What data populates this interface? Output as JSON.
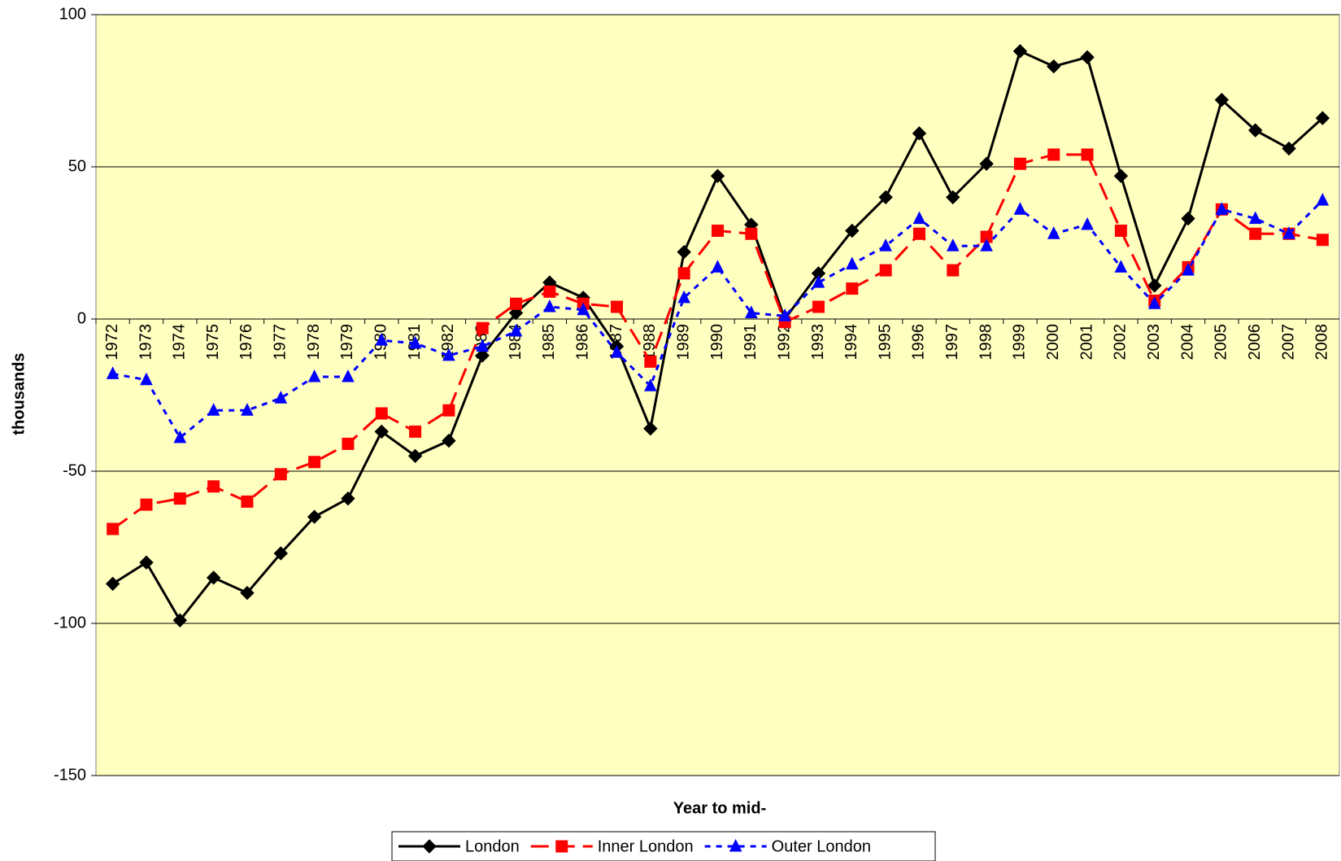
{
  "chart_data": {
    "type": "line",
    "x_label": "Year to mid-",
    "y_label": "thousands",
    "categories": [
      "1972",
      "1973",
      "1974",
      "1975",
      "1976",
      "1977",
      "1978",
      "1979",
      "1980",
      "1981",
      "1982",
      "1983",
      "1984",
      "1985",
      "1986",
      "1987",
      "1988",
      "1989",
      "1990",
      "1991",
      "1992",
      "1993",
      "1994",
      "1995",
      "1996",
      "1997",
      "1998",
      "1999",
      "2000",
      "2001",
      "2002",
      "2003",
      "2004",
      "2005",
      "2006",
      "2007",
      "2008"
    ],
    "series": [
      {
        "name": "London",
        "color": "#000000",
        "marker": "diamond",
        "dash": "solid",
        "values": [
          -87,
          -80,
          -99,
          -85,
          -90,
          -77,
          -65,
          -59,
          -37,
          -45,
          -40,
          -12,
          2,
          12,
          7,
          -9,
          -36,
          22,
          47,
          31,
          0,
          15,
          29,
          40,
          61,
          40,
          51,
          88,
          83,
          86,
          47,
          11,
          33,
          72,
          62,
          56,
          66
        ]
      },
      {
        "name": "Inner London",
        "color": "#ff0000",
        "marker": "square",
        "dash": "long",
        "values": [
          -69,
          -61,
          -59,
          -55,
          -60,
          -51,
          -47,
          -41,
          -31,
          -37,
          -30,
          -3,
          5,
          9,
          5,
          4,
          -14,
          15,
          29,
          28,
          -1,
          4,
          10,
          16,
          28,
          16,
          27,
          51,
          54,
          54,
          29,
          6,
          17,
          36,
          28,
          28,
          26
        ]
      },
      {
        "name": "Outer London",
        "color": "#0000ff",
        "marker": "triangle",
        "dash": "short",
        "values": [
          -18,
          -20,
          -39,
          -30,
          -30,
          -26,
          -19,
          -19,
          -7,
          -8,
          -12,
          -9,
          -4,
          4,
          3,
          -11,
          -22,
          7,
          17,
          2,
          1,
          12,
          18,
          24,
          33,
          24,
          24,
          36,
          28,
          31,
          17,
          5,
          16,
          36,
          33,
          28,
          39
        ]
      }
    ],
    "ylim": [
      -150,
      100
    ],
    "yticks": [
      -150,
      -100,
      -50,
      0,
      50,
      100
    ],
    "grid": true,
    "legend": "bottom"
  }
}
